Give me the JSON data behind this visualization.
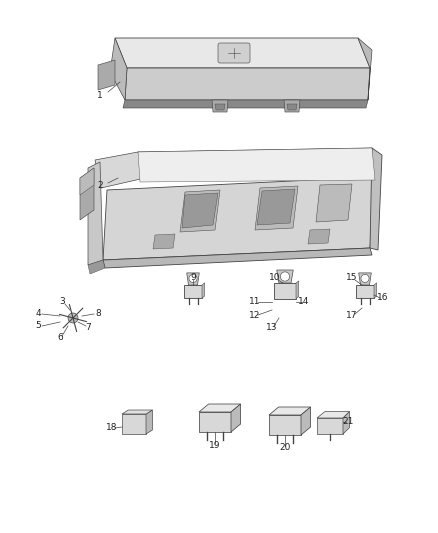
{
  "bg_color": "#ffffff",
  "fig_width": 4.38,
  "fig_height": 5.33,
  "dpi": 100,
  "dgray": "#444444",
  "mgray": "#888888",
  "lgray": "#cccccc",
  "xlgray": "#e8e8e8",
  "label_fs": 6.5,
  "label_color": "#222222",
  "lw": 0.6
}
